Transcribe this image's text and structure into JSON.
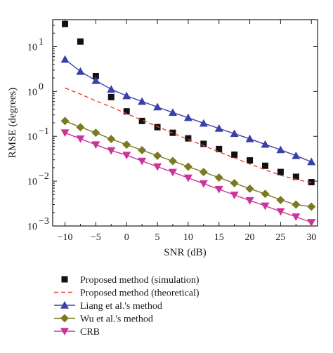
{
  "chart_data": {
    "type": "line",
    "xlabel": "SNR (dB)",
    "ylabel": "RMSE (degrees)",
    "xlim": [
      -12,
      31
    ],
    "ylim": [
      0.001,
      40
    ],
    "yscale": "log",
    "xticks": [
      -10,
      -5,
      0,
      5,
      10,
      15,
      20,
      25,
      30
    ],
    "yticks": [
      {
        "value": 0.001,
        "base": "10",
        "exp": "−3"
      },
      {
        "value": 0.01,
        "base": "10",
        "exp": "−2"
      },
      {
        "value": 0.1,
        "base": "10",
        "exp": "−1"
      },
      {
        "value": 1,
        "base": "10",
        "exp": "0"
      },
      {
        "value": 10,
        "base": "10",
        "exp": "1"
      }
    ],
    "grid": false,
    "legend_position": "below",
    "x": [
      -10,
      -7.5,
      -5,
      -2.5,
      0,
      2.5,
      5,
      7.5,
      10,
      12.5,
      15,
      17.5,
      20,
      22.5,
      25,
      27.5,
      30
    ],
    "series": [
      {
        "name": "Proposed method (simulation)",
        "style": "markers",
        "marker": "square",
        "color": "#111111",
        "values": [
          32,
          13,
          2.2,
          0.75,
          0.36,
          0.22,
          0.16,
          0.12,
          0.09,
          0.068,
          0.052,
          0.039,
          0.029,
          0.022,
          0.016,
          0.0125,
          0.0095
        ]
      },
      {
        "name": "Proposed method (theoretical)",
        "style": "dashed",
        "marker": "none",
        "color": "#e8442a",
        "values": [
          1.2,
          0.87,
          0.62,
          0.45,
          0.32,
          0.23,
          0.165,
          0.118,
          0.085,
          0.062,
          0.045,
          0.033,
          0.024,
          0.018,
          0.0135,
          0.011,
          0.0092
        ]
      },
      {
        "name": "Liang et al.'s method",
        "style": "line-markers",
        "marker": "triangle-up",
        "color": "#3a40a8",
        "values": [
          5.2,
          2.8,
          1.75,
          1.12,
          0.8,
          0.6,
          0.45,
          0.34,
          0.26,
          0.195,
          0.15,
          0.115,
          0.088,
          0.066,
          0.05,
          0.037,
          0.027
        ]
      },
      {
        "name": "Wu et al.'s method",
        "style": "line-markers",
        "marker": "diamond",
        "color": "#7a7a22",
        "values": [
          0.22,
          0.16,
          0.12,
          0.087,
          0.065,
          0.049,
          0.037,
          0.028,
          0.021,
          0.016,
          0.012,
          0.009,
          0.0068,
          0.0052,
          0.0038,
          0.003,
          0.0027
        ]
      },
      {
        "name": "CRB",
        "style": "line-markers",
        "marker": "triangle-down",
        "color": "#cc3399",
        "values": [
          0.12,
          0.088,
          0.065,
          0.048,
          0.038,
          0.028,
          0.021,
          0.0158,
          0.0118,
          0.0088,
          0.0066,
          0.0049,
          0.0037,
          0.0028,
          0.0021,
          0.0016,
          0.0012
        ]
      }
    ]
  }
}
